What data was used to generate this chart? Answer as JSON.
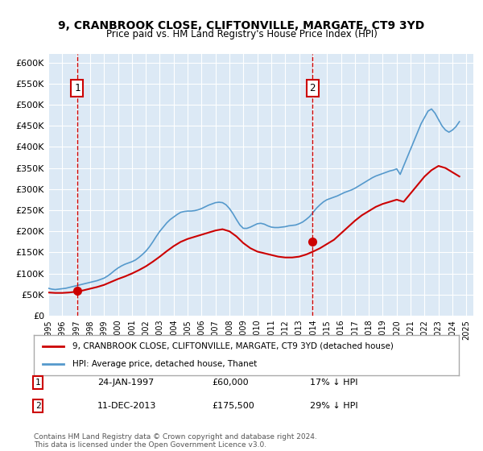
{
  "title": "9, CRANBROOK CLOSE, CLIFTONVILLE, MARGATE, CT9 3YD",
  "subtitle": "Price paid vs. HM Land Registry's House Price Index (HPI)",
  "ylabel": "",
  "xlabel": "",
  "ylim": [
    0,
    620000
  ],
  "yticks": [
    0,
    50000,
    100000,
    150000,
    200000,
    250000,
    300000,
    350000,
    400000,
    450000,
    500000,
    550000,
    600000
  ],
  "ytick_labels": [
    "£0",
    "£50K",
    "£100K",
    "£150K",
    "£200K",
    "£250K",
    "£300K",
    "£350K",
    "£400K",
    "£450K",
    "£500K",
    "£550K",
    "£600K"
  ],
  "xlim_start": 1995.0,
  "xlim_end": 2025.5,
  "bg_color": "#dce9f5",
  "plot_bg_color": "#dce9f5",
  "transaction1_x": 1997.07,
  "transaction1_y": 60000,
  "transaction1_label": "1",
  "transaction1_date": "24-JAN-1997",
  "transaction1_price": "£60,000",
  "transaction1_hpi": "17% ↓ HPI",
  "transaction2_x": 2013.95,
  "transaction2_y": 175500,
  "transaction2_label": "2",
  "transaction2_date": "11-DEC-2013",
  "transaction2_price": "£175,500",
  "transaction2_hpi": "29% ↓ HPI",
  "red_line_color": "#cc0000",
  "blue_line_color": "#5599cc",
  "marker_color": "#cc0000",
  "dashed_line_color": "#cc0000",
  "legend_label_red": "9, CRANBROOK CLOSE, CLIFTONVILLE, MARGATE, CT9 3YD (detached house)",
  "legend_label_blue": "HPI: Average price, detached house, Thanet",
  "footnote": "Contains HM Land Registry data © Crown copyright and database right 2024.\nThis data is licensed under the Open Government Licence v3.0.",
  "hpi_years": [
    1995.0,
    1995.25,
    1995.5,
    1995.75,
    1996.0,
    1996.25,
    1996.5,
    1996.75,
    1997.0,
    1997.25,
    1997.5,
    1997.75,
    1998.0,
    1998.25,
    1998.5,
    1998.75,
    1999.0,
    1999.25,
    1999.5,
    1999.75,
    2000.0,
    2000.25,
    2000.5,
    2000.75,
    2001.0,
    2001.25,
    2001.5,
    2001.75,
    2002.0,
    2002.25,
    2002.5,
    2002.75,
    2003.0,
    2003.25,
    2003.5,
    2003.75,
    2004.0,
    2004.25,
    2004.5,
    2004.75,
    2005.0,
    2005.25,
    2005.5,
    2005.75,
    2006.0,
    2006.25,
    2006.5,
    2006.75,
    2007.0,
    2007.25,
    2007.5,
    2007.75,
    2008.0,
    2008.25,
    2008.5,
    2008.75,
    2009.0,
    2009.25,
    2009.5,
    2009.75,
    2010.0,
    2010.25,
    2010.5,
    2010.75,
    2011.0,
    2011.25,
    2011.5,
    2011.75,
    2012.0,
    2012.25,
    2012.5,
    2012.75,
    2013.0,
    2013.25,
    2013.5,
    2013.75,
    2014.0,
    2014.25,
    2014.5,
    2014.75,
    2015.0,
    2015.25,
    2015.5,
    2015.75,
    2016.0,
    2016.25,
    2016.5,
    2016.75,
    2017.0,
    2017.25,
    2017.5,
    2017.75,
    2018.0,
    2018.25,
    2018.5,
    2018.75,
    2019.0,
    2019.25,
    2019.5,
    2019.75,
    2020.0,
    2020.25,
    2020.5,
    2020.75,
    2021.0,
    2021.25,
    2021.5,
    2021.75,
    2022.0,
    2022.25,
    2022.5,
    2022.75,
    2023.0,
    2023.25,
    2023.5,
    2023.75,
    2024.0,
    2024.25,
    2024.5
  ],
  "hpi_values": [
    65000,
    63000,
    62000,
    63000,
    64000,
    65000,
    67000,
    69000,
    71000,
    73000,
    75000,
    77000,
    79000,
    81000,
    83000,
    86000,
    89000,
    94000,
    100000,
    107000,
    113000,
    118000,
    122000,
    125000,
    128000,
    132000,
    138000,
    145000,
    153000,
    163000,
    175000,
    188000,
    200000,
    210000,
    220000,
    228000,
    234000,
    240000,
    245000,
    247000,
    248000,
    248000,
    249000,
    251000,
    254000,
    258000,
    262000,
    265000,
    268000,
    269000,
    268000,
    263000,
    254000,
    242000,
    228000,
    215000,
    207000,
    207000,
    210000,
    214000,
    218000,
    219000,
    217000,
    213000,
    210000,
    209000,
    209000,
    210000,
    211000,
    213000,
    214000,
    215000,
    218000,
    222000,
    228000,
    235000,
    245000,
    255000,
    263000,
    270000,
    275000,
    278000,
    281000,
    284000,
    288000,
    292000,
    295000,
    298000,
    302000,
    307000,
    312000,
    317000,
    322000,
    327000,
    331000,
    334000,
    337000,
    340000,
    343000,
    345000,
    348000,
    335000,
    355000,
    375000,
    395000,
    415000,
    435000,
    455000,
    470000,
    485000,
    490000,
    480000,
    465000,
    450000,
    440000,
    435000,
    440000,
    448000,
    460000
  ],
  "red_years": [
    1995.0,
    1995.5,
    1996.0,
    1996.5,
    1997.0,
    1997.5,
    1998.0,
    1998.5,
    1999.0,
    1999.5,
    2000.0,
    2000.5,
    2001.0,
    2001.5,
    2002.0,
    2002.5,
    2003.0,
    2003.5,
    2004.0,
    2004.5,
    2005.0,
    2005.5,
    2006.0,
    2006.5,
    2007.0,
    2007.5,
    2008.0,
    2008.5,
    2009.0,
    2009.5,
    2010.0,
    2010.5,
    2011.0,
    2011.5,
    2012.0,
    2012.5,
    2013.0,
    2013.5,
    2014.0,
    2014.5,
    2015.0,
    2015.5,
    2016.0,
    2016.5,
    2017.0,
    2017.5,
    2018.0,
    2018.5,
    2019.0,
    2019.5,
    2020.0,
    2020.5,
    2021.0,
    2021.5,
    2022.0,
    2022.5,
    2023.0,
    2023.5,
    2024.0,
    2024.5
  ],
  "red_values": [
    55000,
    54000,
    54000,
    55000,
    57000,
    60000,
    64000,
    68000,
    73000,
    80000,
    87000,
    93000,
    100000,
    108000,
    117000,
    128000,
    140000,
    153000,
    165000,
    175000,
    182000,
    187000,
    192000,
    197000,
    202000,
    205000,
    200000,
    188000,
    172000,
    160000,
    152000,
    148000,
    144000,
    140000,
    138000,
    138000,
    140000,
    145000,
    152000,
    160000,
    170000,
    180000,
    195000,
    210000,
    225000,
    238000,
    248000,
    258000,
    265000,
    270000,
    275000,
    270000,
    290000,
    310000,
    330000,
    345000,
    355000,
    350000,
    340000,
    330000
  ]
}
